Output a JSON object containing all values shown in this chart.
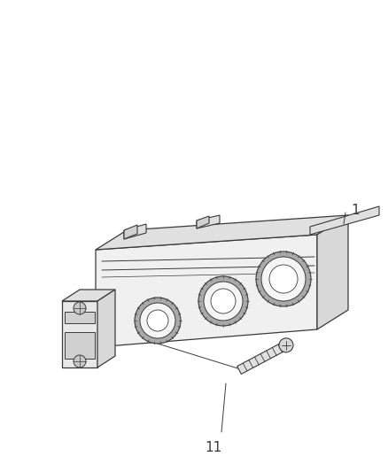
{
  "background_color": "#ffffff",
  "line_color": "#3a3a3a",
  "fill_front": "#f0f0f0",
  "fill_top": "#e0e0e0",
  "fill_side": "#d8d8d8",
  "fill_bracket": "#e8e8e8",
  "label_color": "#3a3a3a",
  "fig_width": 4.38,
  "fig_height": 5.33,
  "dpi": 100,
  "label_1": "1",
  "label_11": "11"
}
